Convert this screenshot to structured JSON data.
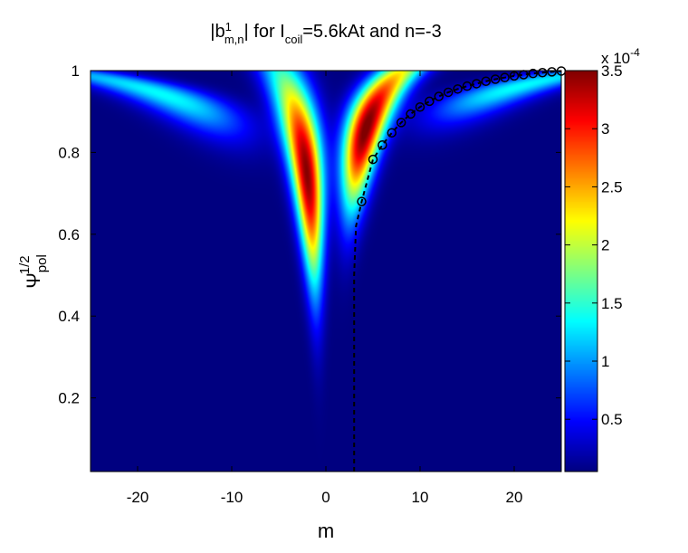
{
  "chart_data": {
    "type": "heatmap",
    "title": {
      "text_1": "|b",
      "sup_1": "1",
      "sub_1": "m,n",
      "text_2": "| for I",
      "sub_2": "coil",
      "text_3": "=5.6kAt and n=-3"
    },
    "xlabel": "m",
    "ylabel": {
      "main": "Ψ",
      "sup": "1/2",
      "sub": "pol"
    },
    "xlim": [
      -25,
      25
    ],
    "ylim": [
      0.02,
      1.0
    ],
    "x_ticks": [
      -20,
      -10,
      0,
      10,
      20
    ],
    "x_tick_labels": [
      "-20",
      "-10",
      "0",
      "10",
      "20"
    ],
    "y_ticks": [
      0.2,
      0.4,
      0.6,
      0.8,
      1.0
    ],
    "y_tick_labels": [
      "0.2",
      "0.4",
      "0.6",
      "0.8",
      "1"
    ],
    "colorbar": {
      "colormap": "jet",
      "range": [
        0.05,
        3.5
      ],
      "ticks": [
        0.5,
        1,
        1.5,
        2,
        2.5,
        3,
        3.5
      ],
      "tick_labels": [
        "0.5",
        "1",
        "1.5",
        "2",
        "2.5",
        "3",
        "3.5"
      ],
      "scale_prefix": "x 10",
      "scale_exp": "-4"
    },
    "field": {
      "description_units": "|b| in units of 1e-4",
      "ridges": [
        {
          "side": "left",
          "lobe": "main",
          "peak_m": -2.2,
          "peak_psi": 0.75,
          "peak_value": 3.5
        },
        {
          "side": "right",
          "lobe": "main",
          "peak_m": 4.0,
          "peak_psi": 0.85,
          "peak_value": 3.5
        },
        {
          "side": "left",
          "lobe": "secondary",
          "peak_value": 1.3
        },
        {
          "side": "right",
          "lobe": "secondary",
          "peak_value": 1.3
        }
      ]
    },
    "series": [
      {
        "marker": "circle",
        "line_style": "dashed",
        "color": "#000000",
        "points": [
          [
            3.0,
            0.02
          ],
          [
            3.0,
            0.25
          ],
          [
            3.0,
            0.5
          ],
          [
            3.2,
            0.62
          ],
          [
            3.8,
            0.68
          ],
          [
            5,
            0.783
          ],
          [
            6,
            0.818
          ],
          [
            7,
            0.848
          ],
          [
            8,
            0.873
          ],
          [
            9,
            0.894
          ],
          [
            10,
            0.911
          ],
          [
            11,
            0.925
          ],
          [
            12,
            0.937
          ],
          [
            13,
            0.947
          ],
          [
            14,
            0.955
          ],
          [
            15,
            0.962
          ],
          [
            16,
            0.968
          ],
          [
            17,
            0.974
          ],
          [
            18,
            0.979
          ],
          [
            19,
            0.983
          ],
          [
            20,
            0.987
          ],
          [
            21,
            0.99
          ],
          [
            22,
            0.993
          ],
          [
            23,
            0.995
          ],
          [
            24,
            0.997
          ],
          [
            25,
            0.999
          ]
        ],
        "marker_start_index": 4
      }
    ]
  }
}
